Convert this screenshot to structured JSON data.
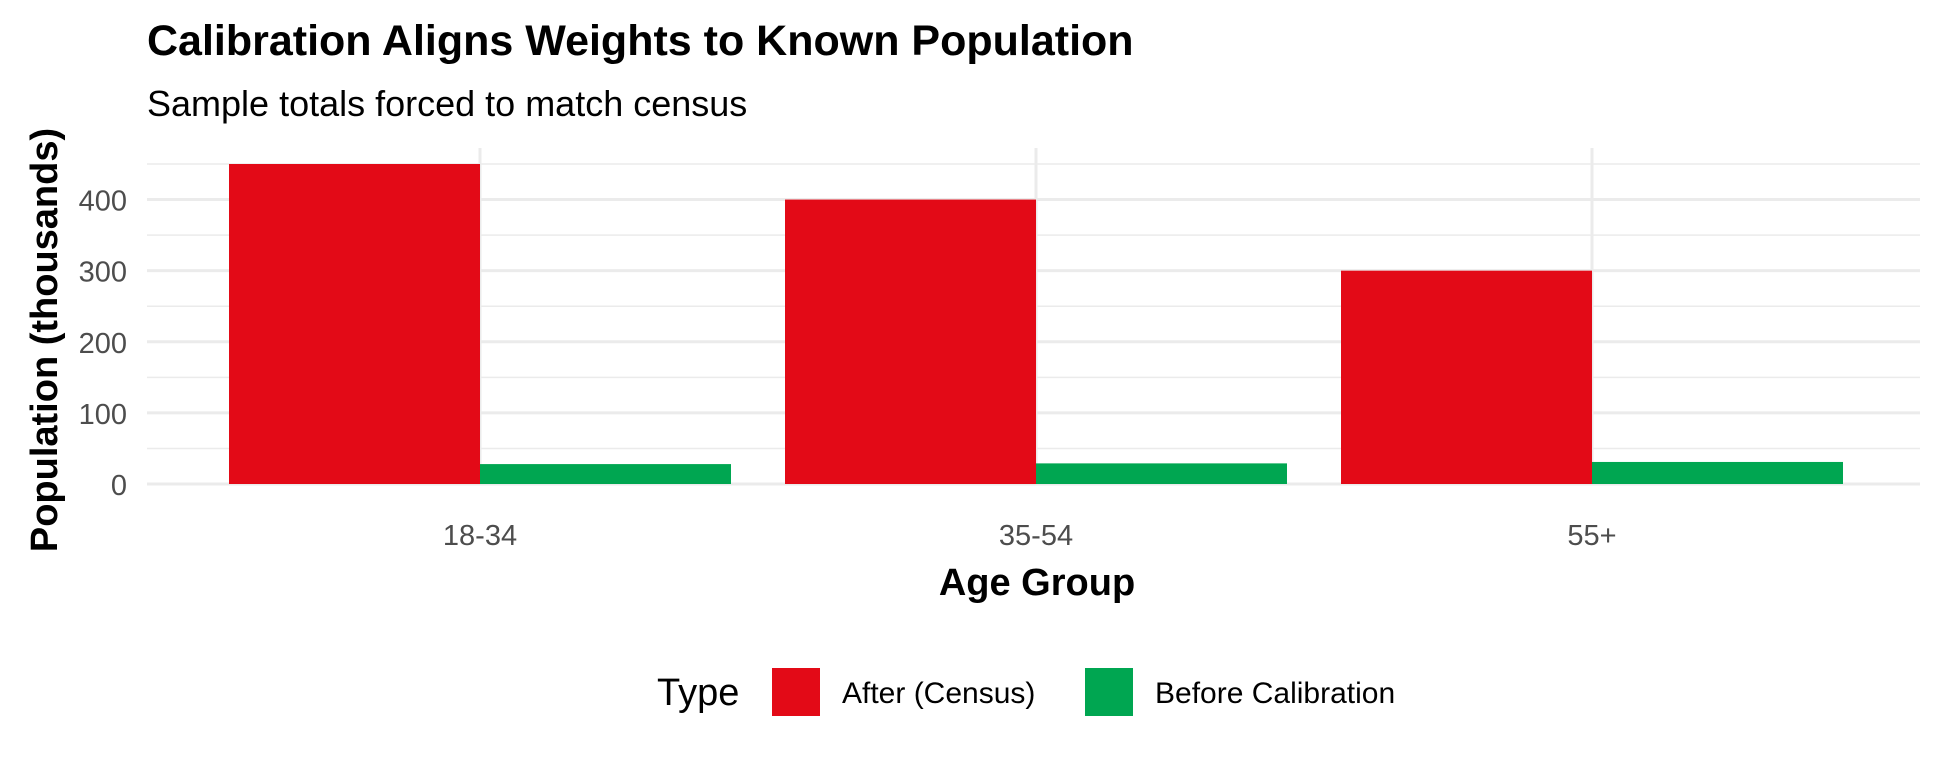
{
  "chart_data": {
    "type": "bar",
    "title": "Calibration Aligns Weights to Known Population",
    "subtitle": "Sample totals forced to match census",
    "xlabel": "Age Group",
    "ylabel": "Population (thousands)",
    "categories": [
      "18-34",
      "35-54",
      "55+"
    ],
    "ylim": [
      0,
      450
    ],
    "yticks": [
      0,
      100,
      200,
      300,
      400
    ],
    "grid": true,
    "legend": {
      "title": "Type",
      "position": "bottom"
    },
    "series": [
      {
        "name": "After (Census)",
        "color": "#E30A17",
        "values": [
          450,
          400,
          300
        ]
      },
      {
        "name": "Before Calibration",
        "color": "#00A651",
        "values": [
          28,
          29,
          31
        ]
      }
    ]
  }
}
